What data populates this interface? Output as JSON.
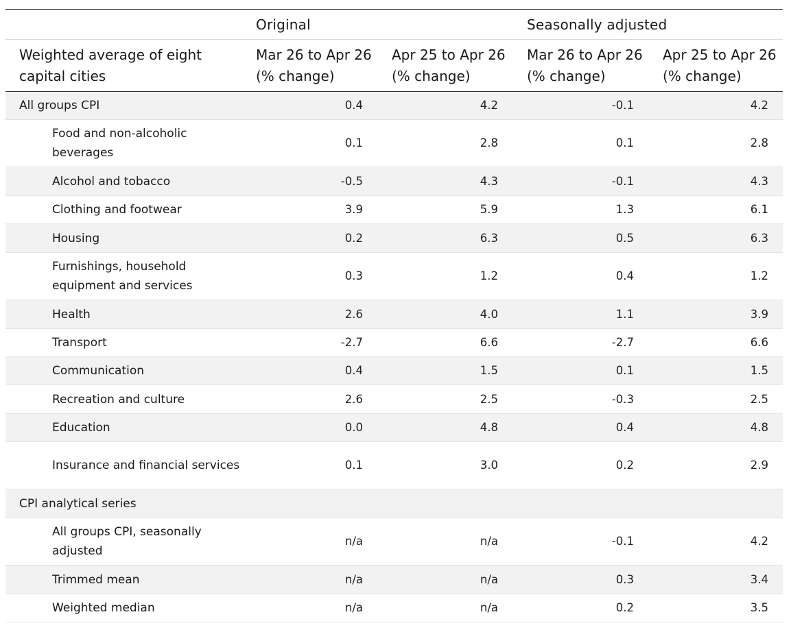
{
  "table": {
    "group_headers": [
      "",
      "Original",
      "",
      "Seasonally adjusted",
      ""
    ],
    "column_headers": [
      "Weighted average of eight capital cities",
      "Mar 26 to Apr 26 (% change)",
      "Apr 25 to Apr 26 (% change)",
      "Mar 26 to Apr 26 (% change)",
      "Apr 25 to Apr 26 (% change)"
    ],
    "rows": [
      {
        "label": "All groups CPI",
        "values": [
          "0.4",
          "4.2",
          "-0.1",
          "4.2"
        ]
      },
      {
        "label": "Food and non-alcoholic beverages",
        "values": [
          "0.1",
          "2.8",
          "0.1",
          "2.8"
        ]
      },
      {
        "label": "Alcohol and tobacco",
        "values": [
          "-0.5",
          "4.3",
          "-0.1",
          "4.3"
        ]
      },
      {
        "label": "Clothing and footwear",
        "values": [
          "3.9",
          "5.9",
          "1.3",
          "6.1"
        ]
      },
      {
        "label": "Housing",
        "values": [
          "0.2",
          "6.3",
          "0.5",
          "6.3"
        ]
      },
      {
        "label": "Furnishings, household equipment and services",
        "values": [
          "0.3",
          "1.2",
          "0.4",
          "1.2"
        ]
      },
      {
        "label": "Health",
        "values": [
          "2.6",
          "4.0",
          "1.1",
          "3.9"
        ]
      },
      {
        "label": "Transport",
        "values": [
          "-2.7",
          "6.6",
          "-2.7",
          "6.6"
        ]
      },
      {
        "label": "Communication",
        "values": [
          "0.4",
          "1.5",
          "0.1",
          "1.5"
        ]
      },
      {
        "label": "Recreation and culture",
        "values": [
          "2.6",
          "2.5",
          "-0.3",
          "2.5"
        ]
      },
      {
        "label": "Education",
        "values": [
          "0.0",
          "4.8",
          "0.4",
          "4.8"
        ]
      },
      {
        "label": "Insurance and financial services",
        "values": [
          "0.1",
          "3.0",
          "0.2",
          "2.9"
        ]
      },
      {
        "label": "CPI analytical series",
        "values": [
          "",
          "",
          "",
          ""
        ]
      },
      {
        "label": "All groups CPI, seasonally adjusted",
        "values": [
          "n/a",
          "n/a",
          "-0.1",
          "4.2"
        ]
      },
      {
        "label": "Trimmed mean",
        "values": [
          "n/a",
          "n/a",
          "0.3",
          "3.4"
        ]
      },
      {
        "label": "Weighted median",
        "values": [
          "n/a",
          "n/a",
          "0.2",
          "3.5"
        ]
      }
    ]
  }
}
